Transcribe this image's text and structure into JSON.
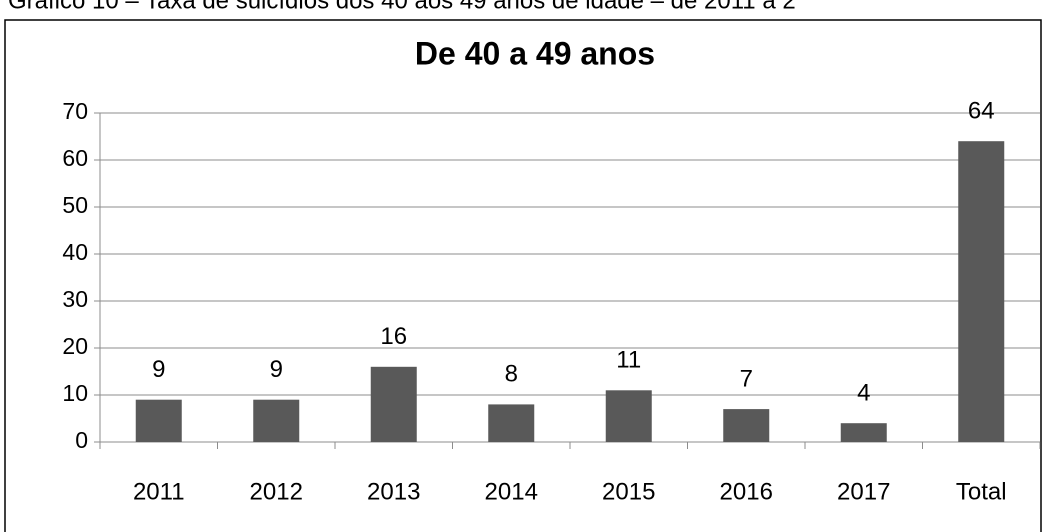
{
  "caption": "Gráfico 10 – Taxa de suicídios dos 40 aos 49 anos de idade – de 2011 a 2",
  "chart_data": {
    "type": "bar",
    "title": "De 40 a 49 anos",
    "categories": [
      "2011",
      "2012",
      "2013",
      "2014",
      "2015",
      "2016",
      "2017",
      "Total"
    ],
    "values": [
      9,
      9,
      16,
      8,
      11,
      7,
      4,
      64
    ],
    "color": "#595959",
    "ylim": [
      0,
      70
    ],
    "yticks": [
      0,
      10,
      20,
      30,
      40,
      50,
      60,
      70
    ],
    "grid": true
  }
}
